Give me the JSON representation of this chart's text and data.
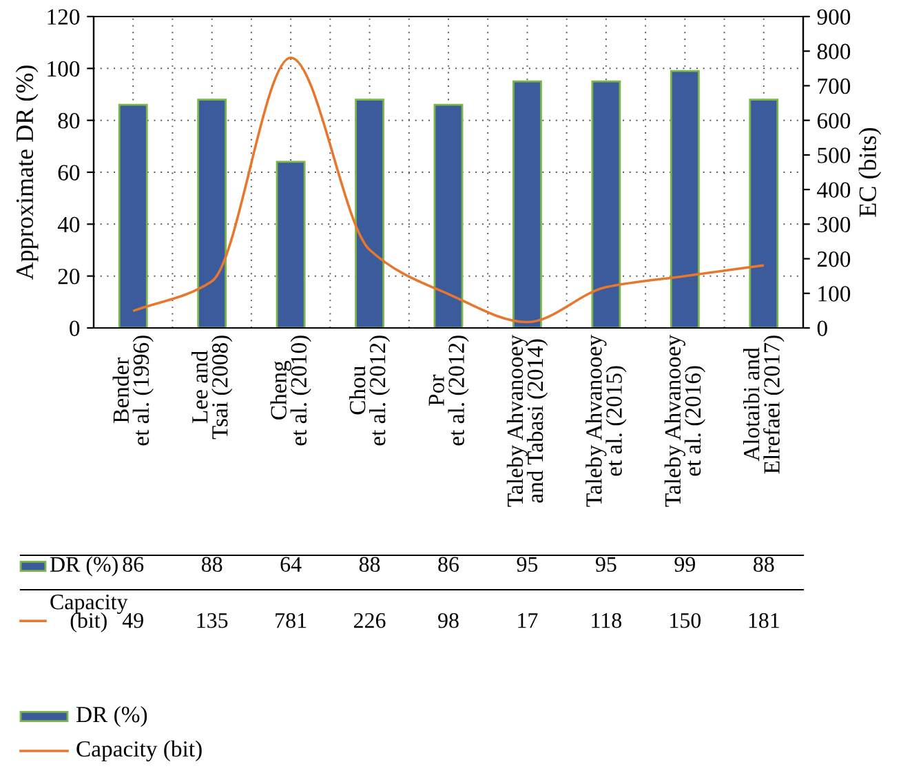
{
  "chart_data": {
    "type": "bar",
    "ylabel": "Approximate DR (%)",
    "y2label": "EC (bits)",
    "categories": [
      "Bender\net al. (1996)",
      "Lee and\nTsai (2008)",
      "Cheng\net al. (2010)",
      "Chou\net al. (2012)",
      "Por\net al. (2012)",
      "Taleby Ahvanooey\nand Tabasi (2014)",
      "Taleby Ahvanooey\net al. (2015)",
      "Taleby Ahvanooey\net al. (2016)",
      "Alotaibi and\nElrefaei (2017)"
    ],
    "series": [
      {
        "name": "DR (%)",
        "color": "#3b5b9c",
        "values": [
          86,
          88,
          64,
          88,
          86,
          95,
          95,
          99,
          88
        ]
      },
      {
        "name": "Capacity\n(bit)",
        "type": "line",
        "axis": "y2",
        "color": "#e8772e",
        "values": [
          49,
          135,
          781,
          226,
          98,
          17,
          118,
          150,
          181
        ]
      }
    ],
    "ylim": [
      0,
      120
    ],
    "yticks": [
      0,
      20,
      40,
      60,
      80,
      100,
      120
    ],
    "y2lim": [
      0,
      900
    ],
    "y2ticks": [
      0,
      100,
      200,
      300,
      400,
      500,
      600,
      700,
      800,
      900
    ],
    "grid": true,
    "data_labels": true,
    "legend": "bottom left"
  }
}
